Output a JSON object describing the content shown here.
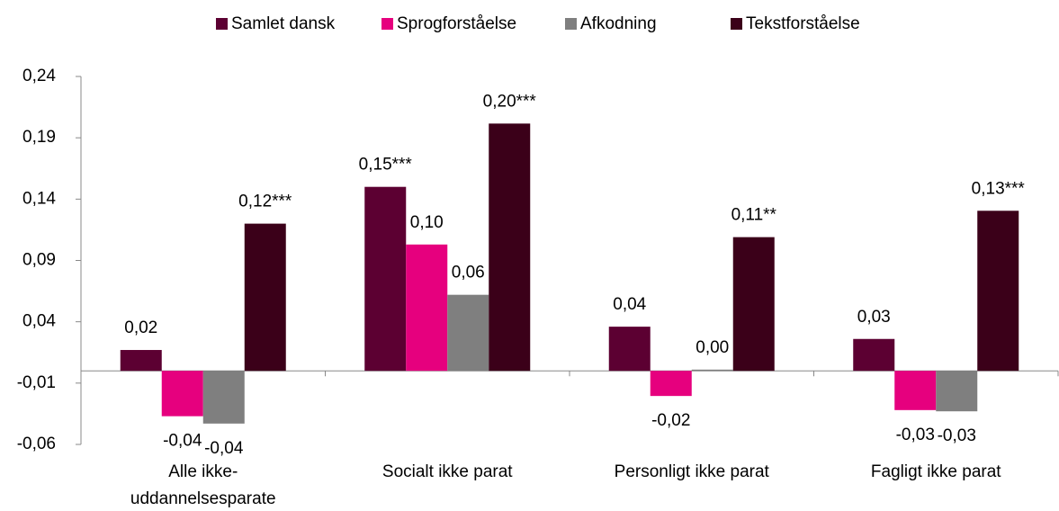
{
  "chart_data": {
    "type": "bar",
    "categories": [
      "Alle ikke-uddannelsesparate",
      "Socialt ikke parat",
      "Personligt ikke parat",
      "Fagligt ikke parat"
    ],
    "series": [
      {
        "name": "Samlet dansk",
        "color": "#5c0032",
        "values": [
          0.017,
          0.15,
          0.036,
          0.026
        ],
        "value_labels": [
          "0,02",
          "0,15***",
          "0,04",
          "0,03"
        ]
      },
      {
        "name": "Sprogforståelse",
        "color": "#e6007e",
        "values": [
          -0.037,
          0.103,
          -0.0205,
          -0.032
        ],
        "value_labels": [
          "-0,04",
          "0,10",
          "-0,02",
          "-0,03"
        ]
      },
      {
        "name": "Afkodning",
        "color": "#7f7f7f",
        "values": [
          -0.043,
          0.062,
          0.001,
          -0.033
        ],
        "value_labels": [
          "-0,04",
          "0,06",
          "0,00",
          "-0,03"
        ]
      },
      {
        "name": "Tekstforståelse",
        "color": "#3b0019",
        "values": [
          0.12,
          0.2016,
          0.109,
          0.1305
        ],
        "value_labels": [
          "0,12***",
          "0,20***",
          "0,11**",
          "0,13***"
        ]
      }
    ],
    "ylim": [
      -0.06,
      0.24
    ],
    "yticks": [
      {
        "value": -0.06,
        "label": "-0,06"
      },
      {
        "value": -0.01,
        "label": "-0,01"
      },
      {
        "value": 0.04,
        "label": "0,04"
      },
      {
        "value": 0.09,
        "label": "0,09"
      },
      {
        "value": 0.14,
        "label": "0,14"
      },
      {
        "value": 0.19,
        "label": "0,19"
      },
      {
        "value": 0.24,
        "label": "0,24"
      }
    ],
    "legend": "top",
    "grid": false
  }
}
